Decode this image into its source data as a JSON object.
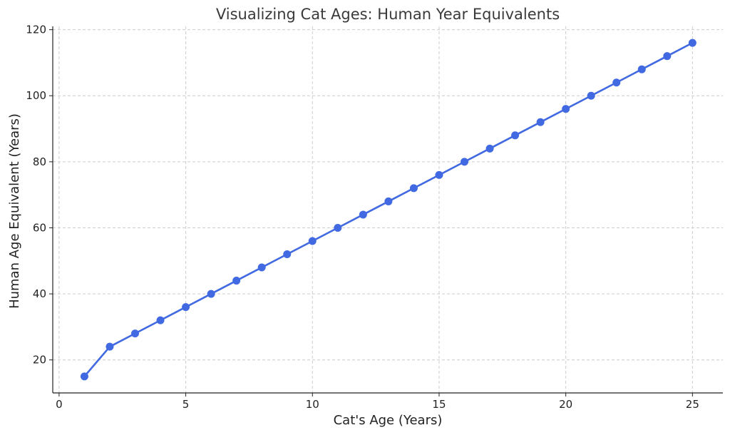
{
  "chart_data": {
    "type": "line",
    "title": "Visualizing Cat Ages: Human Year Equivalents",
    "xlabel": "Cat's Age (Years)",
    "ylabel": "Human Age Equivalent (Years)",
    "xlim": [
      -0.25,
      26.2
    ],
    "ylim": [
      10,
      121
    ],
    "xticks": [
      0,
      5,
      10,
      15,
      20,
      25
    ],
    "yticks": [
      20,
      40,
      60,
      80,
      100,
      120
    ],
    "grid": true,
    "line_color": "#4169e1",
    "series": [
      {
        "x": [
          1,
          2,
          3,
          4,
          5,
          6,
          7,
          8,
          9,
          10,
          11,
          12,
          13,
          14,
          15,
          16,
          17,
          18,
          19,
          20,
          21,
          22,
          23,
          24,
          25
        ],
        "values": [
          15,
          24,
          28,
          32,
          36,
          40,
          44,
          48,
          52,
          56,
          60,
          64,
          68,
          72,
          76,
          80,
          84,
          88,
          92,
          96,
          100,
          104,
          108,
          112,
          116
        ]
      }
    ]
  }
}
